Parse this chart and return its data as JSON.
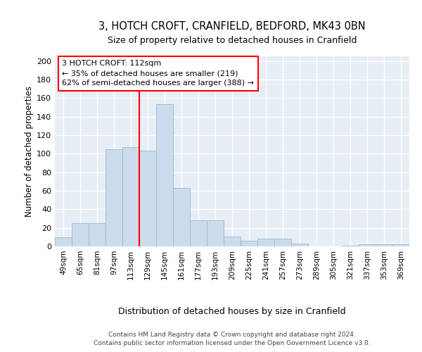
{
  "title": "3, HOTCH CROFT, CRANFIELD, BEDFORD, MK43 0BN",
  "subtitle": "Size of property relative to detached houses in Cranfield",
  "xlabel": "Distribution of detached houses by size in Cranfield",
  "ylabel": "Number of detached properties",
  "categories": [
    "49sqm",
    "65sqm",
    "81sqm",
    "97sqm",
    "113sqm",
    "129sqm",
    "145sqm",
    "161sqm",
    "177sqm",
    "193sqm",
    "209sqm",
    "225sqm",
    "241sqm",
    "257sqm",
    "273sqm",
    "289sqm",
    "305sqm",
    "321sqm",
    "337sqm",
    "353sqm",
    "369sqm"
  ],
  "values": [
    10,
    25,
    25,
    105,
    107,
    103,
    153,
    63,
    28,
    28,
    11,
    6,
    8,
    8,
    3,
    0,
    0,
    1,
    2,
    2,
    2
  ],
  "bar_color": "#ccdcec",
  "bar_edgecolor": "#9ab8d0",
  "redline_label": "3 HOTCH CROFT: 112sqm",
  "annotation_line1": "← 35% of detached houses are smaller (219)",
  "annotation_line2": "62% of semi-detached houses are larger (388) →",
  "ylim": [
    0,
    205
  ],
  "yticks": [
    0,
    20,
    40,
    60,
    80,
    100,
    120,
    140,
    160,
    180,
    200
  ],
  "background_color": "#e8eef5",
  "grid_color": "#ffffff",
  "title_fontsize": 10.5,
  "subtitle_fontsize": 9,
  "footer1": "Contains HM Land Registry data © Crown copyright and database right 2024.",
  "footer2": "Contains public sector information licensed under the Open Government Licence v3.0."
}
